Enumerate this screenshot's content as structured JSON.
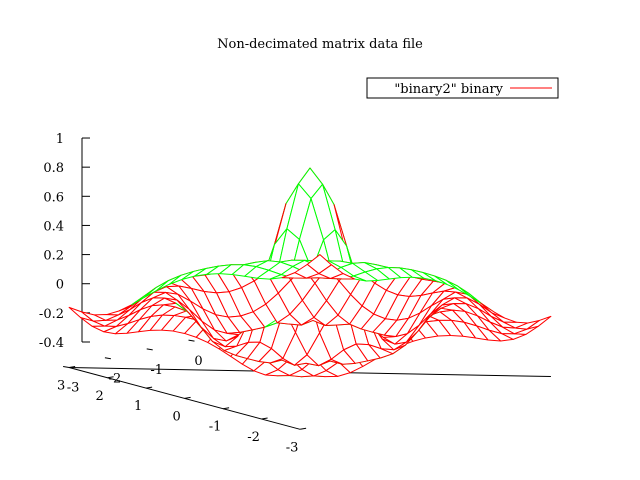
{
  "chart_data": {
    "type": "surface3d",
    "title": "Non-decimated matrix data file",
    "legend": {
      "label": "\"binary2\" binary",
      "position": "top-right",
      "color": "#ff0000"
    },
    "function": "sin(r)/r sampled on a regular grid",
    "grid_x": [
      -3.0,
      -2.7,
      -2.4,
      -2.1,
      -1.8,
      -1.5,
      -1.2,
      -0.9,
      -0.6,
      -0.3,
      0.0,
      0.3,
      0.6,
      0.9,
      1.2,
      1.5,
      1.8,
      2.1,
      2.4,
      2.7,
      3.0
    ],
    "grid_y": [
      -3.0,
      -2.7,
      -2.4,
      -2.1,
      -1.8,
      -1.5,
      -1.2,
      -0.9,
      -0.6,
      -0.3,
      0.0,
      0.3,
      0.6,
      0.9,
      1.2,
      1.5,
      1.8,
      2.1,
      2.4,
      2.7,
      3.0
    ],
    "radial_frequency": 3,
    "zlim": [
      -0.4,
      1.0
    ],
    "xlim": [
      -3,
      3
    ],
    "ylim": [
      -3,
      3
    ],
    "z_ticks": [
      "-0.4",
      "-0.2",
      "0",
      "0.2",
      "0.4",
      "0.6",
      "0.8",
      "1"
    ],
    "x_ticks": [
      "-3",
      "-2",
      "-1",
      "0",
      "1",
      "2",
      "3"
    ],
    "y_ticks": [
      "-3",
      "-2",
      "-1",
      "0",
      "1",
      "2",
      "3"
    ],
    "colors": {
      "top_surface": "#00ff00",
      "bottom_surface": "#ff0000",
      "axes": "#000000"
    }
  }
}
